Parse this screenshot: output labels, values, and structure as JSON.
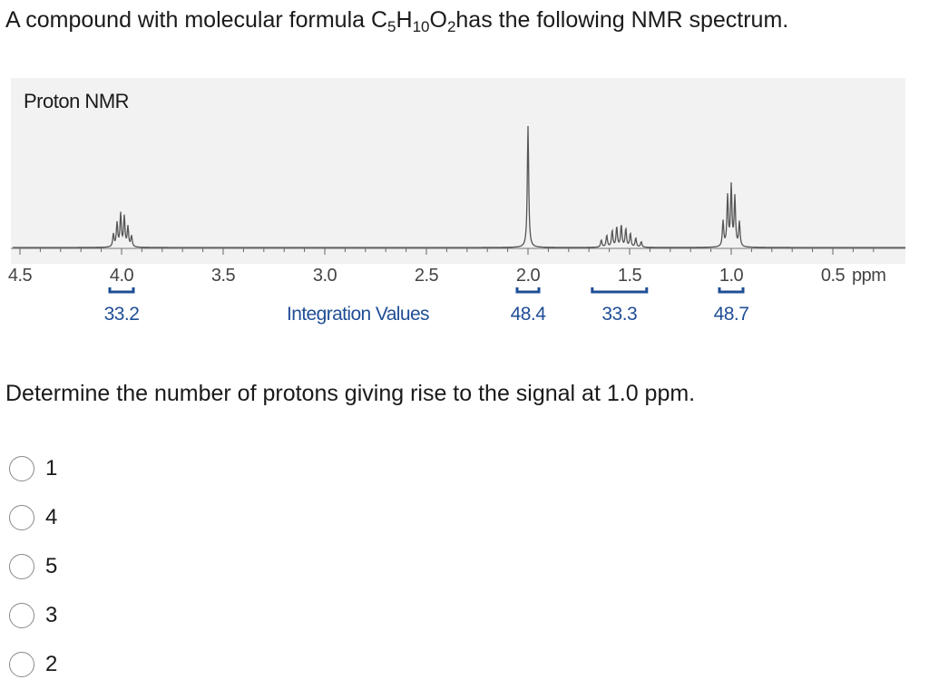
{
  "question": {
    "pre": "A compound with molecular formula C",
    "c_sub": "5",
    "h_letter": "H",
    "h_sub": "10",
    "o_letter": "O",
    "o_sub": "2",
    "post": "has the following NMR spectrum.",
    "prompt": "Determine the number of protons giving rise to the signal at 1.0 ppm."
  },
  "spectrum": {
    "title": "Proton NMR",
    "axis_unit": "ppm",
    "axis_ticks": [
      "4.5",
      "4.0",
      "3.5",
      "3.0",
      "2.5",
      "2.0",
      "1.5",
      "1.0",
      "0.5"
    ],
    "integration_label": "Integration Values",
    "background_color": "#f2f2f2",
    "integration_color": "#1f4e96",
    "peaks": [
      {
        "ppm": 4.0,
        "shape": "multiplet",
        "integration": "33.2"
      },
      {
        "ppm": 2.0,
        "shape": "singlet",
        "integration": "48.4"
      },
      {
        "ppm": 1.55,
        "shape": "multiplet",
        "integration": "33.3"
      },
      {
        "ppm": 1.0,
        "shape": "multiplet",
        "integration": "48.7"
      }
    ]
  },
  "options": [
    {
      "label": "1"
    },
    {
      "label": "4"
    },
    {
      "label": "5"
    },
    {
      "label": "3"
    },
    {
      "label": "2"
    }
  ]
}
